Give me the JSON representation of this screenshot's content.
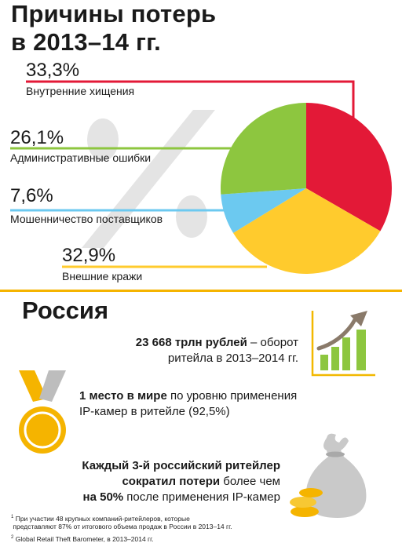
{
  "header": {
    "title_line1": "Причины потерь",
    "title_line2": "в 2013–14 гг."
  },
  "colors": {
    "red": "#E31937",
    "green": "#8DC63F",
    "blue": "#6CC9F0",
    "yellow": "#FFCB2D",
    "gray": "#B5B5B5",
    "divider": "#F5B400"
  },
  "chart_data": {
    "type": "pie",
    "slices": [
      {
        "value": 33.3,
        "label_value": "33,3%",
        "label": "Внутренние хищения",
        "color": "#E31937"
      },
      {
        "value": 32.9,
        "label_value": "32,9%",
        "label": "Внешние кражи",
        "color": "#FFCB2D"
      },
      {
        "value": 7.6,
        "label_value": "7,6%",
        "label": "Мошенничество поставщиков",
        "color": "#6CC9F0"
      },
      {
        "value": 26.1,
        "label_value": "26,1%",
        "label": "Административные ошибки",
        "color": "#8DC63F"
      }
    ]
  },
  "russia": {
    "title": "Россия",
    "stat1_bold": "23 668 трлн рублей",
    "stat1_rest": " – оборот",
    "stat1_line2": "ритейла в 2013–2014 гг.",
    "stat2_bold": "1 место в мире",
    "stat2_rest": "  по уровню применения",
    "stat2_line2": "IP-камер в ритейле (92,5%)",
    "stat3_line1": "Каждый 3-й российский ритейлер",
    "stat3_bold2": "сократил потери",
    "stat3_rest2": "  более чем",
    "stat3_bold3": "на 50%",
    "stat3_rest3": " после применения IP-камер"
  },
  "footnotes": {
    "fn1_mark": "1",
    "fn1_line1": "При участии 48 крупных компаний-ритейлеров, которые",
    "fn1_line2": "представляют 87% от итогового объема продаж в России в 2013–14 гг.",
    "fn2_mark": "2",
    "fn2_text": "Global Retail Theft Barometer, в 2013–2014 гг."
  },
  "icons": {
    "percent": "percent-icon",
    "growth": "growth-chart-icon",
    "medal": "medal-icon",
    "money_bag": "money-bag-icon"
  }
}
